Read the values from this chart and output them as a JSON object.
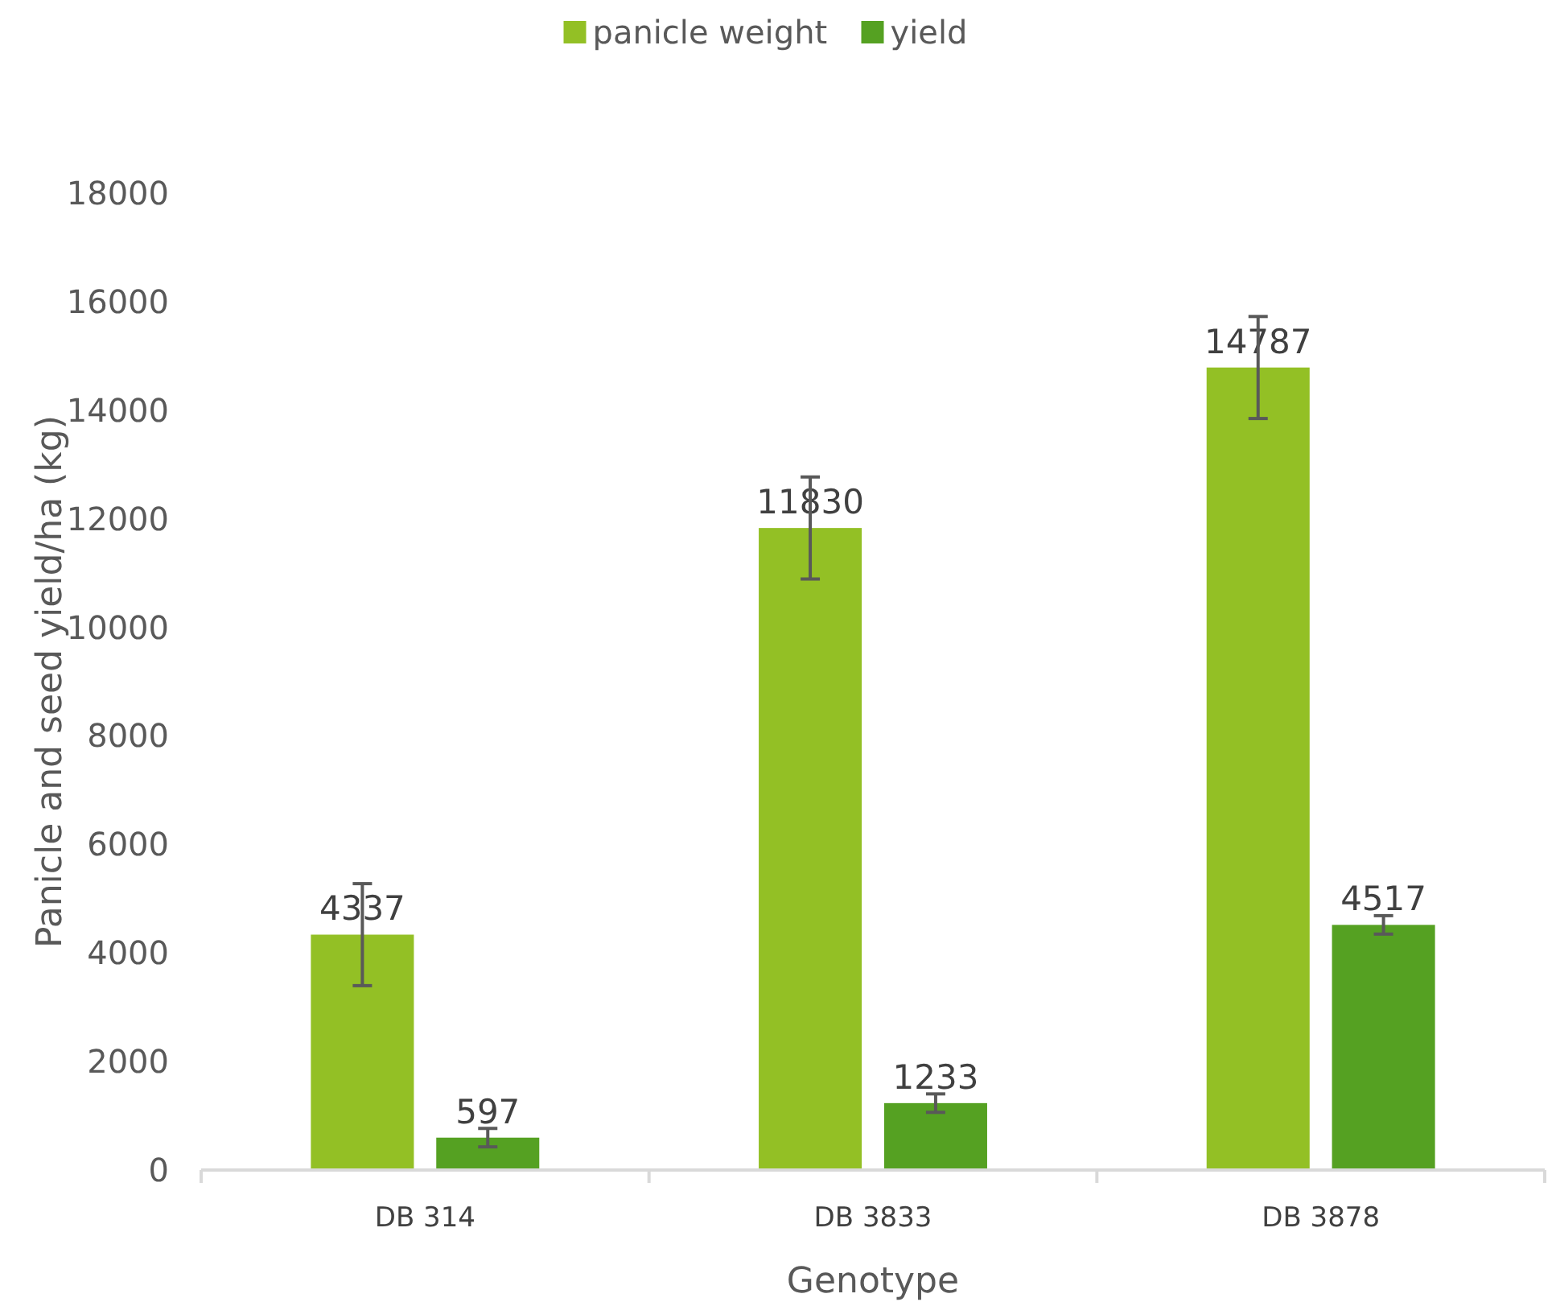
{
  "chart_data": {
    "type": "bar",
    "xlabel": "Genotype",
    "ylabel": "Panicle and seed yield/ha (kg)",
    "categories": [
      "DB 314",
      "DB 3833",
      "DB 3878"
    ],
    "series": [
      {
        "name": "panicle weight",
        "color": "#93c025",
        "values": [
          4337,
          11830,
          14787
        ],
        "errors": [
          940,
          940,
          940
        ]
      },
      {
        "name": "yield",
        "color": "#55a122",
        "values": [
          597,
          1233,
          4517
        ],
        "errors": [
          170,
          170,
          170
        ]
      }
    ],
    "ylim": [
      0,
      18000
    ],
    "yticks": [
      0,
      2000,
      4000,
      6000,
      8000,
      10000,
      12000,
      14000,
      16000,
      18000
    ],
    "grid": false,
    "legend": "top",
    "data_labels": true
  }
}
